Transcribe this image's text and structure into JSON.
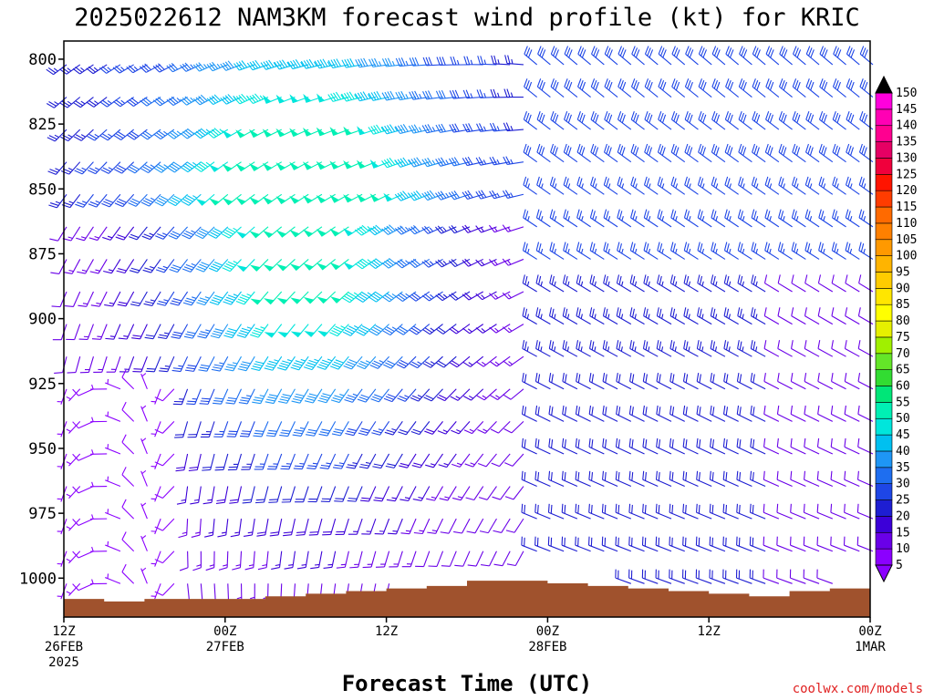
{
  "chart_data": {
    "type": "wind-barb-profile",
    "title": "2025022612 NAM3KM forecast wind profile (kt) for KRIC",
    "xlabel": "Forecast Time (UTC)",
    "ylabel": "",
    "units": "kt",
    "credit": "coolwx.com/models",
    "y_axis": {
      "scale": "pressure-hPa",
      "ticks": [
        800,
        825,
        850,
        875,
        900,
        925,
        950,
        975,
        1000
      ],
      "range": [
        793,
        1015
      ]
    },
    "x_axis": {
      "range_hours": [
        0,
        60
      ],
      "ticks": [
        {
          "hour": 0,
          "lines": [
            "12Z",
            "26FEB",
            "2025"
          ]
        },
        {
          "hour": 12,
          "lines": [
            "00Z",
            "27FEB"
          ]
        },
        {
          "hour": 24,
          "lines": [
            "12Z"
          ]
        },
        {
          "hour": 36,
          "lines": [
            "00Z",
            "28FEB"
          ]
        },
        {
          "hour": 48,
          "lines": [
            "12Z"
          ]
        },
        {
          "hour": 60,
          "lines": [
            "00Z",
            "1MAR"
          ]
        }
      ]
    },
    "colorbar": {
      "levels": [
        5,
        10,
        15,
        20,
        25,
        30,
        35,
        40,
        45,
        50,
        55,
        60,
        65,
        70,
        75,
        80,
        85,
        90,
        95,
        100,
        105,
        110,
        115,
        120,
        125,
        130,
        135,
        140,
        145,
        150
      ],
      "colors": [
        "#8b00ff",
        "#6a00e8",
        "#3c00d8",
        "#1e1ed2",
        "#1e46e6",
        "#1e6ef0",
        "#1e96f5",
        "#00c0f0",
        "#00e6dc",
        "#00f0b4",
        "#00e678",
        "#32dc32",
        "#64e628",
        "#a0f000",
        "#e6f000",
        "#ffff00",
        "#ffe600",
        "#ffcc00",
        "#ffb400",
        "#ff9900",
        "#ff8000",
        "#ff6a00",
        "#ff3c00",
        "#ff1400",
        "#f0003c",
        "#e60064",
        "#ff0090",
        "#ff00b4",
        "#ff00dc",
        "#e600ff"
      ]
    },
    "surface_pressure": {
      "hours": [
        0,
        3,
        6,
        9,
        12,
        15,
        18,
        21,
        24,
        27,
        30,
        33,
        36,
        39,
        42,
        45,
        48,
        51,
        54,
        57,
        60
      ],
      "hPa": [
        1008,
        1009,
        1008,
        1008,
        1008,
        1007,
        1006,
        1005,
        1004,
        1003,
        1001,
        1001,
        1002,
        1003,
        1004,
        1005,
        1006,
        1007,
        1005,
        1004,
        1003
      ]
    },
    "barbs": {
      "spacing_hours": 1,
      "levels_hPa": [
        800,
        812.5,
        825,
        837.5,
        850,
        862.5,
        875,
        887.5,
        900,
        912.5,
        925,
        937.5,
        950,
        962.5,
        975,
        987.5,
        1000
      ],
      "description": "wind barbs per forecast hour and level; speeds ~5-50 kt, strongest (45-50 kt, westerly/southwesterly) near 800-900 hPa around hour 15-22; weak light winds below 925 hPa early; after hour 35 northwesterly 20-30 kt"
    }
  }
}
